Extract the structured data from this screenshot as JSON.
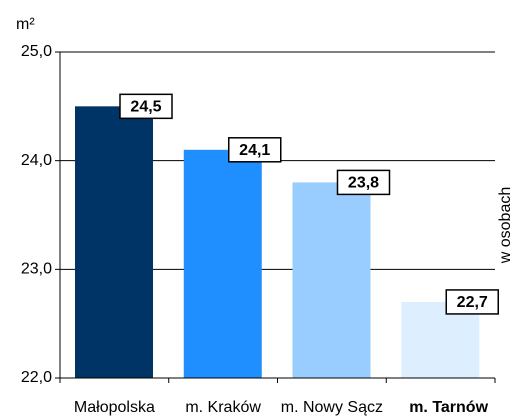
{
  "chart_data": {
    "type": "bar",
    "y_unit": "m²",
    "side_label": "w osobach",
    "categories": [
      "Małopolska",
      "m. Kraków",
      "m. Nowy Sącz",
      "m. Tarnów"
    ],
    "values": [
      24.5,
      24.1,
      23.8,
      22.7
    ],
    "value_labels": [
      "24,5",
      "24,1",
      "23,8",
      "22,7"
    ],
    "colors": [
      "#003366",
      "#1f8fff",
      "#99ccff",
      "#ddeeff"
    ],
    "bold_category": 3,
    "ylim": [
      22,
      25
    ],
    "yticks": [
      {
        "value": 22,
        "label": "22,0"
      },
      {
        "value": 23,
        "label": "23,0"
      },
      {
        "value": 24,
        "label": "24,0"
      },
      {
        "value": 25,
        "label": "25,0"
      }
    ],
    "grid": true
  }
}
